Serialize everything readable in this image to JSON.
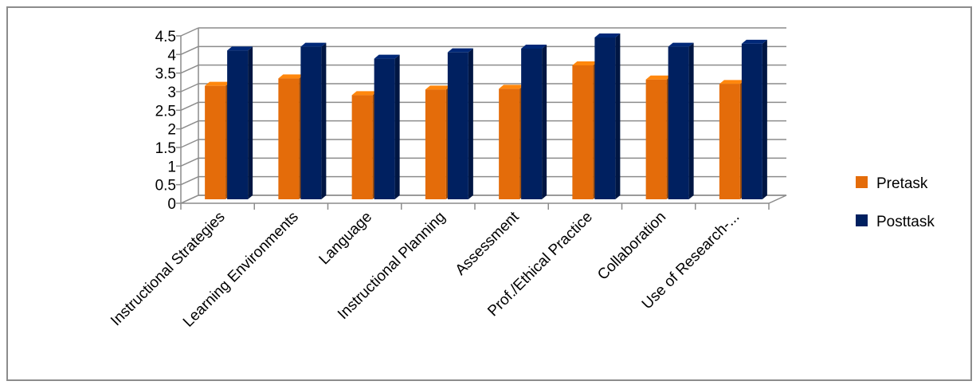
{
  "chart_data": {
    "type": "bar",
    "style": "3d-clustered-column",
    "categories": [
      "Instructional Strategies",
      "Learning Environments",
      "Language",
      "Instructional Planning",
      "Assessment",
      "Prof./Ethical Practice",
      "Collaboration",
      "Use of Research-..."
    ],
    "series": [
      {
        "name": "Pretask",
        "color": "#E46C0A",
        "values": [
          3.05,
          3.25,
          2.8,
          2.95,
          2.97,
          3.6,
          3.22,
          3.1
        ]
      },
      {
        "name": "Posttask",
        "color": "#002060",
        "values": [
          4.0,
          4.1,
          3.78,
          3.95,
          4.05,
          4.35,
          4.1,
          4.18
        ]
      }
    ],
    "y_ticks": [
      "0",
      "0.5",
      "1",
      "1.5",
      "2",
      "2.5",
      "3",
      "3.5",
      "4",
      "4.5"
    ],
    "ylim": [
      0,
      4.5
    ],
    "grid": true,
    "legend_position": "right",
    "title": "",
    "xlabel": "",
    "ylabel": ""
  }
}
